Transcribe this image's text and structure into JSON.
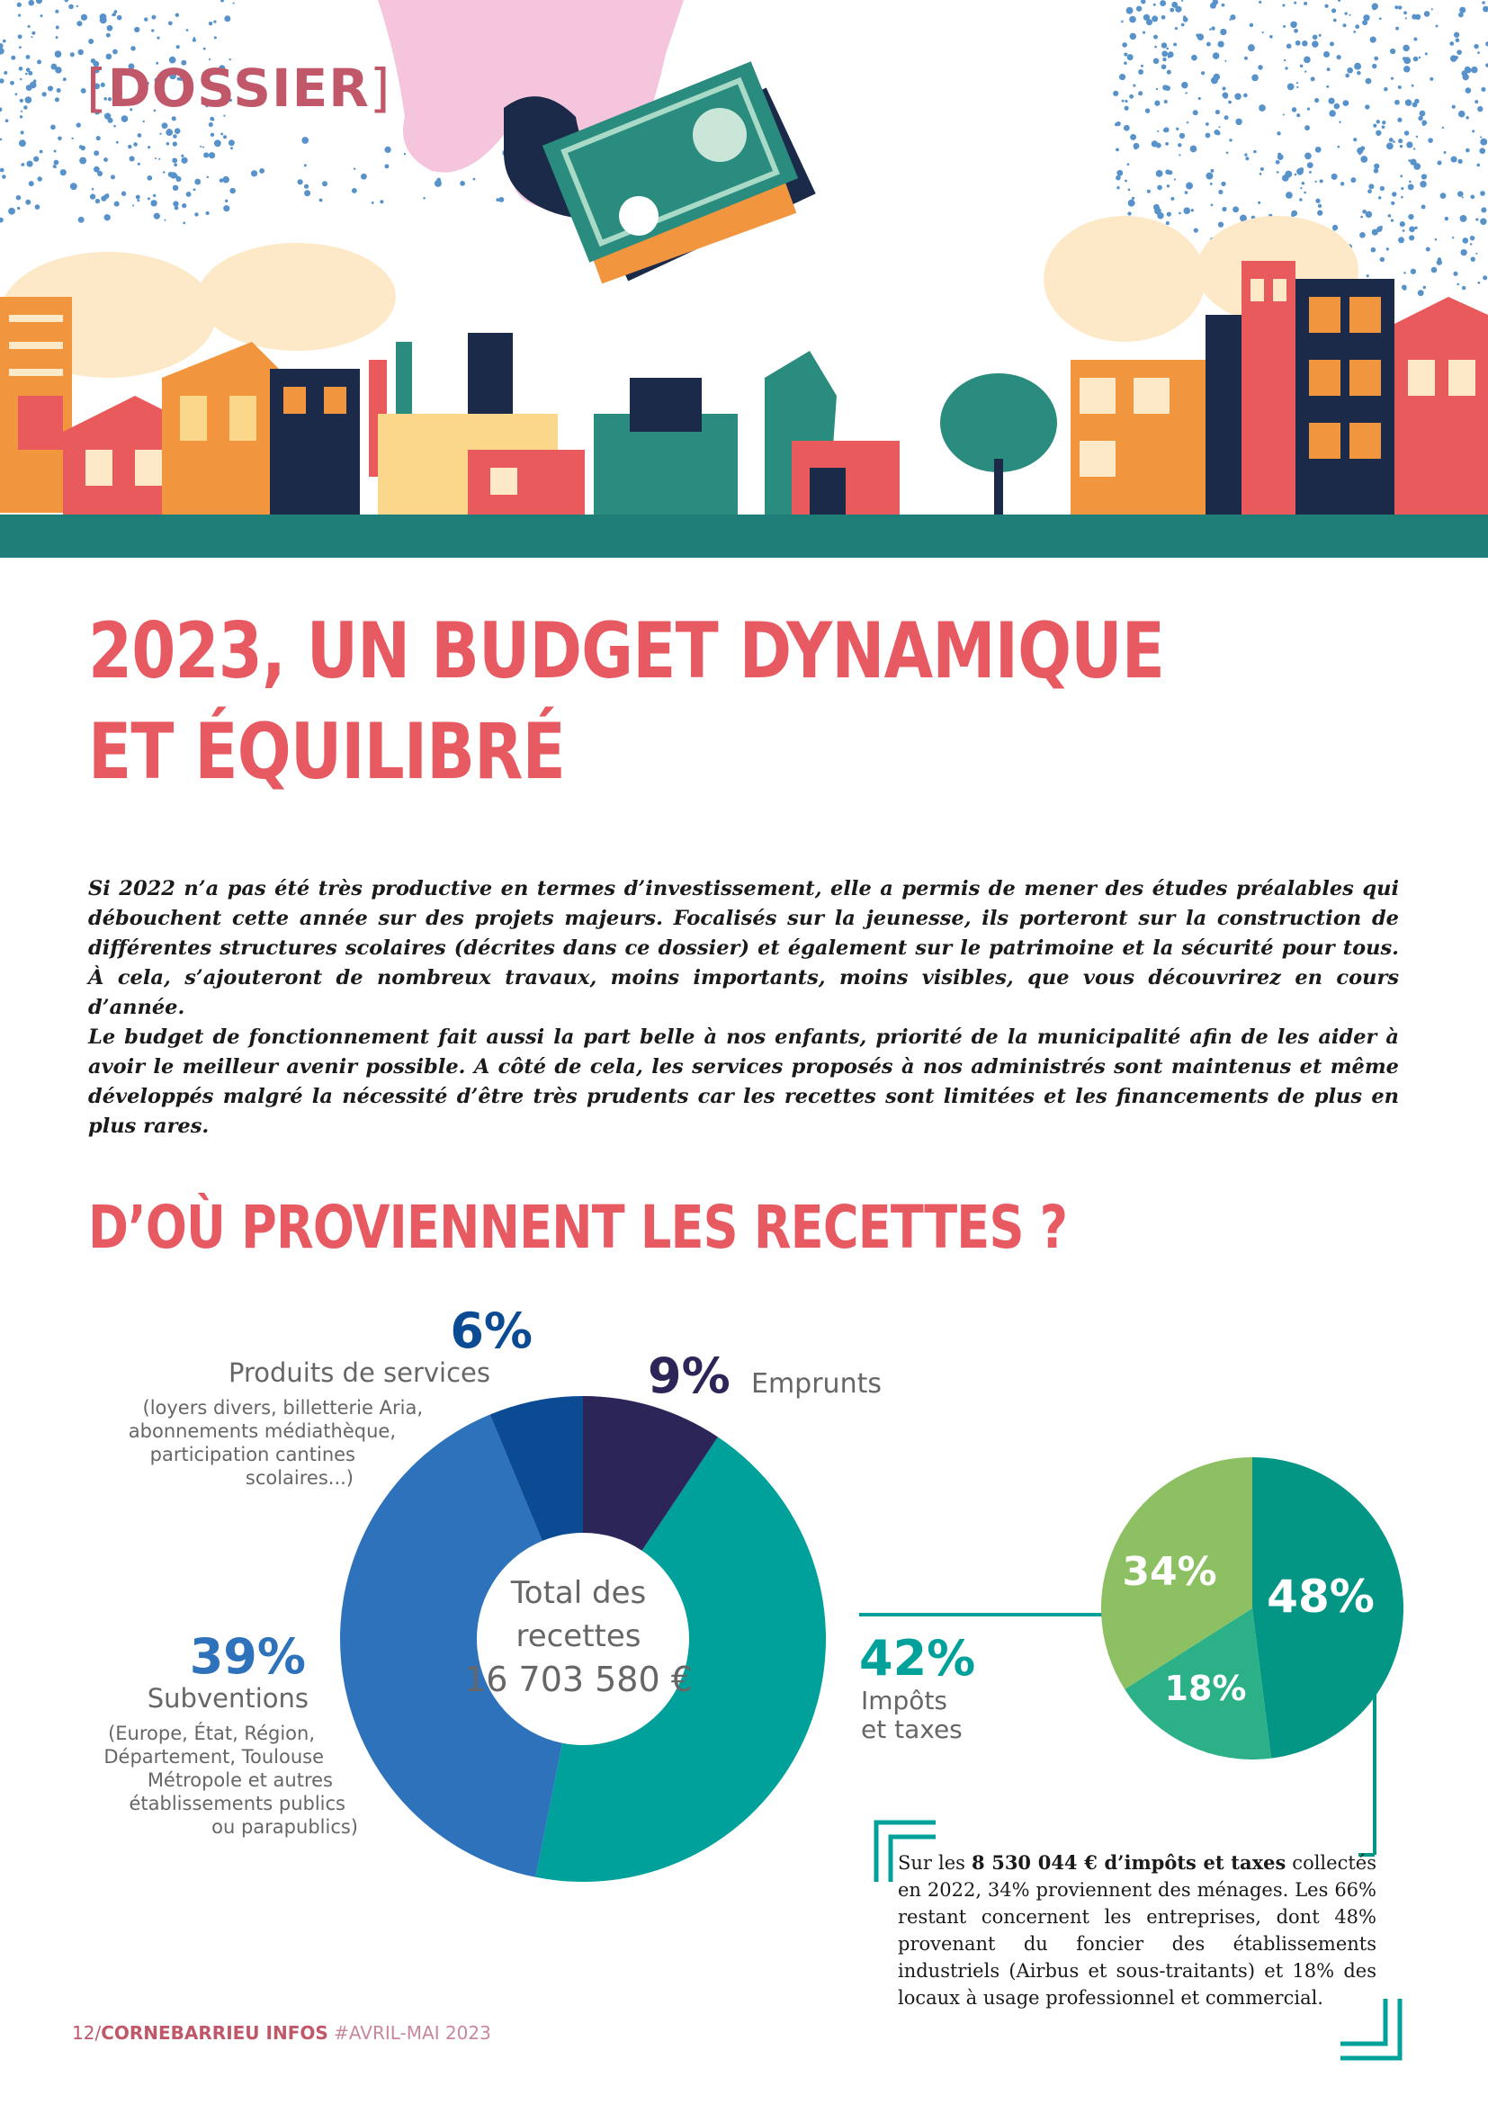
{
  "header": {
    "tag": "DOSSIER",
    "tag_open": "[",
    "tag_close": "]"
  },
  "title": {
    "line1": "2023, UN BUDGET DYNAMIQUE",
    "line2": "ET ÉQUILIBRÉ"
  },
  "intro": {
    "p1": "Si 2022 n’a pas été très productive en termes d’investissement, elle a permis de mener des études préalables qui débouchent cette année sur des projets majeurs. Focalisés sur la jeunesse, ils porteront sur la construction de différentes structures scolaires (décrites dans ce dossier) et également sur le patrimoine et la sécurité pour tous. À cela, s’ajouteront de nombreux travaux, moins importants, moins visibles, que vous découvrirez en cours d’année.",
    "p2": "Le budget de fonctionnement fait aussi la part belle à nos enfants, priorité de la municipalité afin de les aider à avoir le meilleur avenir possible. A côté de cela, les services proposés à nos administrés sont maintenus et même développés malgré la nécessité d’être très prudents car les recettes sont limitées et les financements de plus en plus rares."
  },
  "section_title": "D’OÙ PROVIENNENT LES RECETTES ?",
  "chart_data": [
    {
      "type": "pie",
      "subtype": "donut",
      "center_label_line1": "Total des",
      "center_label_line2": "recettes",
      "total": "16 703 580 €",
      "slices": [
        {
          "label": "Emprunts",
          "pct_label": "9%",
          "value": 9,
          "color": "#2c2557"
        },
        {
          "label": "Impôts et taxes",
          "label_line1": "Impôts",
          "label_line2": "et taxes",
          "pct_label": "42%",
          "value": 42,
          "color": "#00a19a"
        },
        {
          "label": "Subventions",
          "pct_label": "39%",
          "value": 39,
          "color": "#2d72bb",
          "detail": [
            "(Europe, État, Région,",
            "Département, Toulouse",
            "Métropole et autres",
            "établissements publics",
            "ou parapublics)"
          ]
        },
        {
          "label": "Produits de services",
          "pct_label": "6%",
          "value": 6,
          "color": "#0a4b93",
          "detail": [
            "(loyers divers,  billetterie Aria,",
            "abonnements médiathèque,",
            "participation cantines",
            "scolaires...)"
          ]
        }
      ]
    },
    {
      "type": "pie",
      "slices": [
        {
          "pct_label": "48%",
          "value": 48,
          "color": "#049685"
        },
        {
          "pct_label": "18%",
          "value": 18,
          "color": "#2cb088"
        },
        {
          "pct_label": "34%",
          "value": 34,
          "color": "#8cc063"
        }
      ]
    }
  ],
  "infobox": {
    "pre": "Sur les ",
    "bold": "8 530 044 € d’impôts et taxes",
    "post": " collectés en 2022, 34% proviennent des ménages. Les 66% restant concernent les entreprises, dont 48% provenant du foncier des établissements industriels (Airbus et sous-traitants) et 18% des locaux à usage professionnel et commercial."
  },
  "footer": {
    "page": "12",
    "sep": "/",
    "brand": "CORNEBARRIEU INFOS",
    "issue": " #AVRIL-MAI 2023"
  },
  "colors": {
    "title": "#e75a62",
    "teal": "#00a19a",
    "navy": "#2c2557",
    "blue": "#2d72bb",
    "dark_blue": "#0a4b93"
  }
}
